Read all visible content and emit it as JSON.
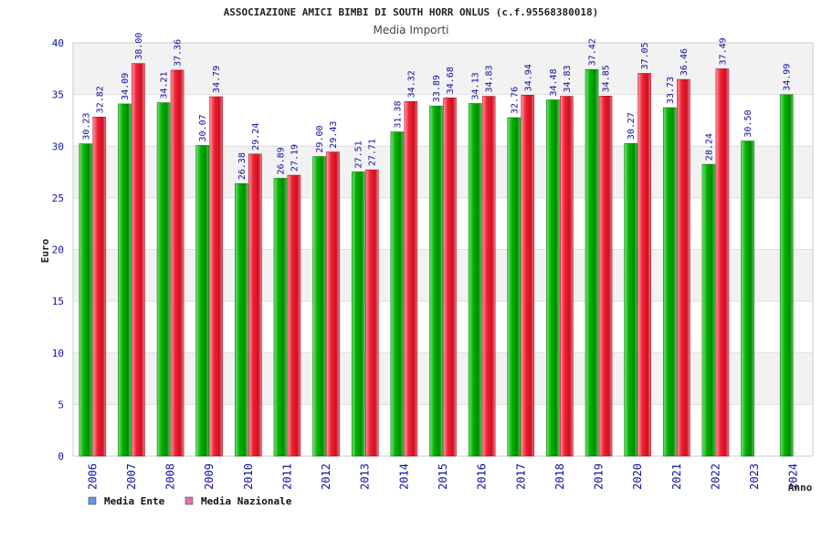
{
  "chart_data": {
    "type": "bar",
    "title": "ASSOCIAZIONE AMICI BIMBI DI SOUTH HORR ONLUS (c.f.95568380018)",
    "subtitle": "Media Importi",
    "ylabel": "Euro",
    "xlabel": "Anno",
    "ylim": [
      0,
      40
    ],
    "yticks": [
      0,
      5,
      10,
      15,
      20,
      25,
      30,
      35,
      40
    ],
    "grid": true,
    "legend_position": "bottom-left",
    "categories": [
      "2006",
      "2007",
      "2008",
      "2009",
      "2010",
      "2011",
      "2012",
      "2013",
      "2014",
      "2015",
      "2016",
      "2017",
      "2018",
      "2019",
      "2020",
      "2021",
      "2022",
      "2023",
      "2024"
    ],
    "series": [
      {
        "name": "Media Ente",
        "color": "#00a000",
        "legend_color": "#6699dd",
        "values": [
          30.23,
          34.09,
          34.21,
          30.07,
          26.38,
          26.89,
          29.0,
          27.51,
          31.38,
          33.89,
          34.13,
          32.76,
          34.48,
          37.42,
          30.27,
          33.73,
          28.24,
          30.5,
          34.99
        ],
        "labels": [
          "30.23",
          "34.09",
          "34.21",
          "30.07",
          "26.38",
          "26.89",
          "29.00",
          "27.51",
          "31.38",
          "33.89",
          "34.13",
          "32.76",
          "34.48",
          "37.42",
          "30.27",
          "33.73",
          "28.24",
          "30.50",
          "34.99"
        ]
      },
      {
        "name": "Media Nazionale",
        "color": "#e02030",
        "legend_color": "#dd77aa",
        "values": [
          32.82,
          38.0,
          37.36,
          34.79,
          29.24,
          27.19,
          29.43,
          27.71,
          34.32,
          34.68,
          34.83,
          34.94,
          34.83,
          34.85,
          37.05,
          36.46,
          37.49,
          null,
          null
        ],
        "labels": [
          "32.82",
          "38.00",
          "37.36",
          "34.79",
          "29.24",
          "27.19",
          "29.43",
          "27.71",
          "34.32",
          "34.68",
          "34.83",
          "34.94",
          "34.83",
          "34.85",
          "37.05",
          "36.46",
          "37.49",
          "",
          ""
        ]
      }
    ]
  }
}
